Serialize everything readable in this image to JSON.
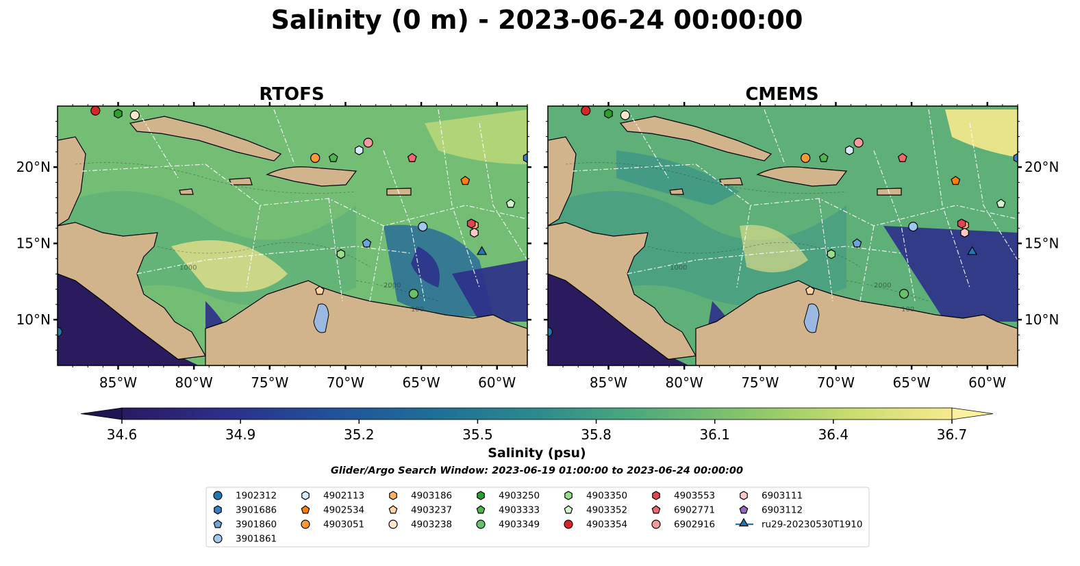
{
  "figure_title": "Salinity (0 m) - 2023-06-24 00:00:00",
  "panels": [
    {
      "title": "RTOFS"
    },
    {
      "title": "CMEMS"
    }
  ],
  "axes": {
    "lon_ticks": [
      "85°W",
      "80°W",
      "75°W",
      "70°W",
      "65°W",
      "60°W"
    ],
    "lat_ticks": [
      "20°N",
      "15°N",
      "10°N"
    ]
  },
  "colorbar": {
    "label": "Salinity (psu)",
    "ticks": [
      "34.6",
      "34.9",
      "35.2",
      "35.5",
      "35.8",
      "36.1",
      "36.4",
      "36.7"
    ],
    "colors": [
      "#2a1a5e",
      "#2c2f8a",
      "#22509a",
      "#1f6e96",
      "#2d8a8c",
      "#4faa7c",
      "#86c46c",
      "#c8dc6e",
      "#f6ea8e"
    ]
  },
  "subtitle": "Glider/Argo Search Window: 2023-06-19 01:00:00 to 2023-06-24 00:00:00",
  "contour_labels": {
    "a": "1000",
    "b": "2000",
    "c": "100"
  },
  "chart_data": {
    "type": "map-heatmap",
    "variable": "Salinity",
    "units": "psu",
    "depth": "0 m",
    "time": "2023-06-24 00:00:00",
    "models": [
      "RTOFS",
      "CMEMS"
    ],
    "lon_range": [
      -89,
      -58
    ],
    "lat_range": [
      7,
      24
    ],
    "clim": [
      34.6,
      36.7
    ],
    "colorbar_ticks": [
      34.6,
      34.9,
      35.2,
      35.5,
      35.8,
      36.1,
      36.4,
      36.7
    ],
    "legend": [
      {
        "label": "1902312",
        "marker": "circle",
        "color": "#1f77b4",
        "lon": -89.0,
        "lat": 9.2
      },
      {
        "label": "3901686",
        "marker": "hexagon",
        "color": "#3a7fc1",
        "lon": -58.0,
        "lat": 20.6
      },
      {
        "label": "3901860",
        "marker": "pentagon",
        "color": "#6aa6db",
        "lon": -68.6,
        "lat": 15.0
      },
      {
        "label": "3901861",
        "marker": "circle",
        "color": "#9ec8ec",
        "lon": -64.9,
        "lat": 16.1
      },
      {
        "label": "4902113",
        "marker": "hexagon",
        "color": "#d9ecf9",
        "lon": -69.1,
        "lat": 21.1
      },
      {
        "label": "4902534",
        "marker": "pentagon",
        "color": "#ff7f0e",
        "lon": -62.1,
        "lat": 19.1
      },
      {
        "label": "4903051",
        "marker": "circle",
        "color": "#ff9a33",
        "lon": -72.0,
        "lat": 20.6
      },
      {
        "label": "4903186",
        "marker": "hexagon",
        "color": "#ffb266",
        "lon": -61.5,
        "lat": 16.2
      },
      {
        "label": "4903237",
        "marker": "pentagon",
        "color": "#ffd3a6",
        "lon": -71.7,
        "lat": 11.9
      },
      {
        "label": "4903238",
        "marker": "circle",
        "color": "#ffe8cc",
        "lon": -83.9,
        "lat": 23.4
      },
      {
        "label": "4903250",
        "marker": "hexagon",
        "color": "#2ca02c",
        "lon": -85.0,
        "lat": 23.5
      },
      {
        "label": "4903333",
        "marker": "pentagon",
        "color": "#4db74d",
        "lon": -70.8,
        "lat": 20.6
      },
      {
        "label": "4903349",
        "marker": "circle",
        "color": "#66c266",
        "lon": -65.5,
        "lat": 11.7
      },
      {
        "label": "4903350",
        "marker": "hexagon",
        "color": "#98df8a",
        "lon": -70.3,
        "lat": 14.3
      },
      {
        "label": "4903352",
        "marker": "pentagon",
        "color": "#d2f5cc",
        "lon": -59.1,
        "lat": 17.6
      },
      {
        "label": "4903354",
        "marker": "circle",
        "color": "#d62728",
        "lon": -86.5,
        "lat": 23.7
      },
      {
        "label": "4903553",
        "marker": "hexagon",
        "color": "#e0474c",
        "lon": -61.7,
        "lat": 16.3
      },
      {
        "label": "6902771",
        "marker": "pentagon",
        "color": "#ee6a6e",
        "lon": -65.6,
        "lat": 20.6
      },
      {
        "label": "6902916",
        "marker": "circle",
        "color": "#f59a9c",
        "lon": -68.5,
        "lat": 21.6
      },
      {
        "label": "6903111",
        "marker": "hexagon",
        "color": "#ffc8c9",
        "lon": -61.5,
        "lat": 15.7
      },
      {
        "label": "6903112",
        "marker": "pentagon",
        "color": "#9467bd",
        "lon": null,
        "lat": null
      },
      {
        "label": "ru29-20230530T1910",
        "marker": "triangle-line",
        "color": "#1f77b4",
        "lon": -61.0,
        "lat": 14.4
      }
    ]
  }
}
